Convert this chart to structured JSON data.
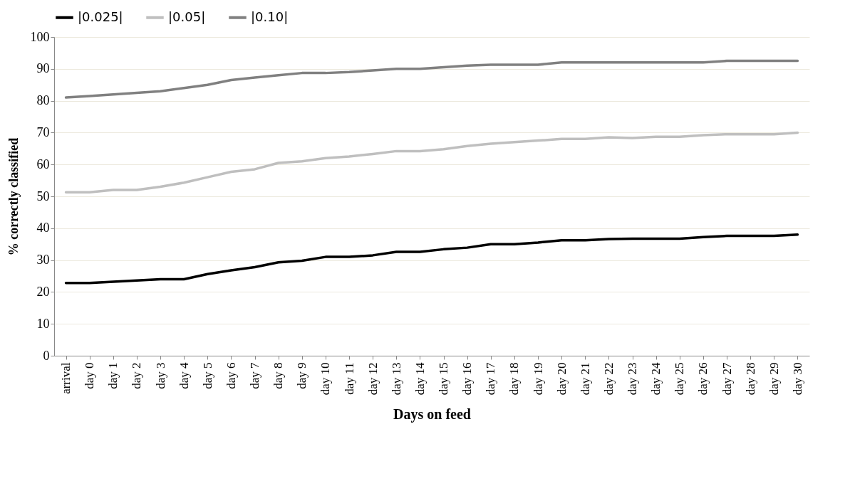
{
  "chart_data": {
    "type": "line",
    "xlabel": "Days on feed",
    "ylabel": "% correctly classified",
    "categories": [
      "arrival",
      "day 0",
      "day 1",
      "day 2",
      "day 3",
      "day 4",
      "day 5",
      "day 6",
      "day 7",
      "day 8",
      "day 9",
      "day 10",
      "day 11",
      "day 12",
      "day 13",
      "day 14",
      "day 15",
      "day 16",
      "day 17",
      "day 18",
      "day 19",
      "day 20",
      "day 21",
      "day 22",
      "day 23",
      "day 24",
      "day 25",
      "day 26",
      "day 27",
      "day 28",
      "day 29",
      "day 30"
    ],
    "series": [
      {
        "name": "|0.025|",
        "color": "#000000",
        "values": [
          22.8,
          22.8,
          23.2,
          23.6,
          24,
          24,
          25.6,
          26.8,
          27.8,
          29.3,
          29.8,
          31,
          31,
          31.5,
          32.6,
          32.6,
          33.4,
          33.9,
          35,
          35,
          35.5,
          36.2,
          36.2,
          36.6,
          36.7,
          36.7,
          36.7,
          37.2,
          37.6,
          37.6,
          37.6,
          38
        ]
      },
      {
        "name": "|0.05|",
        "color": "#bfbfbf",
        "values": [
          51.3,
          51.3,
          52,
          52,
          53,
          54.3,
          56,
          57.7,
          58.5,
          60.5,
          61,
          62,
          62.5,
          63.3,
          64.2,
          64.2,
          64.8,
          65.8,
          66.5,
          67,
          67.5,
          68,
          68,
          68.5,
          68.3,
          68.7,
          68.7,
          69.2,
          69.5,
          69.5,
          69.5,
          70
        ]
      },
      {
        "name": "|0.10|",
        "color": "#808080",
        "values": [
          81,
          81.5,
          82,
          82.5,
          83,
          84,
          85,
          86.5,
          87.3,
          88,
          88.7,
          88.7,
          89,
          89.5,
          90,
          90,
          90.5,
          91,
          91.3,
          91.3,
          91.3,
          92,
          92,
          92,
          92,
          92,
          92,
          92,
          92.5,
          92.5,
          92.5,
          92.5
        ]
      }
    ],
    "ylim": [
      0,
      100
    ],
    "yticks": [
      0,
      10,
      20,
      30,
      40,
      50,
      60,
      70,
      80,
      90,
      100
    ],
    "grid": "y",
    "legend": "top",
    "marker": "none",
    "line_style": "solid"
  }
}
